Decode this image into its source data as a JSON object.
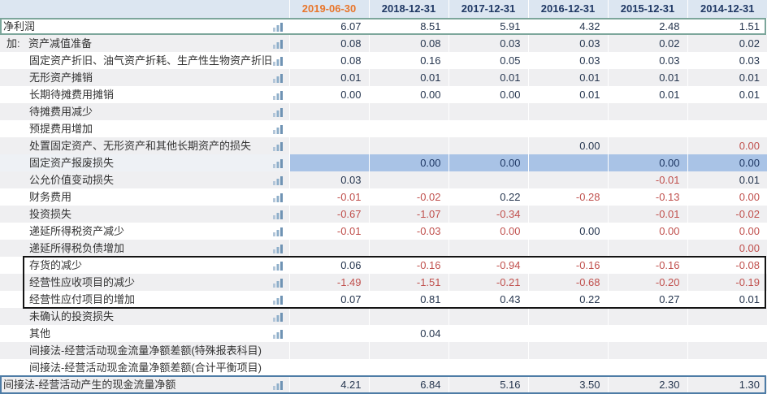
{
  "columns": [
    "2019-06-30",
    "2018-12-31",
    "2017-12-31",
    "2016-12-31",
    "2015-12-31",
    "2014-12-31"
  ],
  "current_period_column": "2019-06-30",
  "rows": [
    {
      "label": "净利润",
      "prefix": "",
      "indent": 0,
      "icon": true,
      "highlight": false,
      "box": "net-profit",
      "cells": [
        [
          "6.07",
          "d"
        ],
        [
          "8.51",
          "d"
        ],
        [
          "5.91",
          "d"
        ],
        [
          "4.32",
          "d"
        ],
        [
          "2.48",
          "d"
        ],
        [
          "1.51",
          "d"
        ]
      ]
    },
    {
      "label": "资产减值准备",
      "prefix": "加:",
      "indent": 0,
      "icon": true,
      "highlight": false,
      "cells": [
        [
          "0.08",
          "d"
        ],
        [
          "0.08",
          "d"
        ],
        [
          "0.03",
          "d"
        ],
        [
          "0.03",
          "d"
        ],
        [
          "0.02",
          "d"
        ],
        [
          "0.02",
          "d"
        ]
      ]
    },
    {
      "label": "固定资产折旧、油气资产折耗、生产性生物资产折旧",
      "prefix": "",
      "indent": 1,
      "icon": true,
      "highlight": false,
      "cells": [
        [
          "0.08",
          "d"
        ],
        [
          "0.16",
          "d"
        ],
        [
          "0.05",
          "d"
        ],
        [
          "0.03",
          "d"
        ],
        [
          "0.03",
          "d"
        ],
        [
          "0.03",
          "d"
        ]
      ]
    },
    {
      "label": "无形资产摊销",
      "prefix": "",
      "indent": 1,
      "icon": true,
      "highlight": false,
      "cells": [
        [
          "0.01",
          "d"
        ],
        [
          "0.01",
          "d"
        ],
        [
          "0.01",
          "d"
        ],
        [
          "0.01",
          "d"
        ],
        [
          "0.01",
          "d"
        ],
        [
          "0.01",
          "d"
        ]
      ]
    },
    {
      "label": "长期待摊费用摊销",
      "prefix": "",
      "indent": 1,
      "icon": true,
      "highlight": false,
      "cells": [
        [
          "0.00",
          "d"
        ],
        [
          "0.00",
          "d"
        ],
        [
          "0.00",
          "d"
        ],
        [
          "0.01",
          "d"
        ],
        [
          "0.01",
          "d"
        ],
        [
          "0.01",
          "d"
        ]
      ]
    },
    {
      "label": "待摊费用减少",
      "prefix": "",
      "indent": 1,
      "icon": true,
      "highlight": false,
      "cells": [
        [
          "",
          ""
        ],
        [
          "",
          ""
        ],
        [
          "",
          ""
        ],
        [
          "",
          ""
        ],
        [
          "",
          ""
        ],
        [
          "",
          ""
        ]
      ]
    },
    {
      "label": "预提费用增加",
      "prefix": "",
      "indent": 1,
      "icon": true,
      "highlight": false,
      "cells": [
        [
          "",
          ""
        ],
        [
          "",
          ""
        ],
        [
          "",
          ""
        ],
        [
          "",
          ""
        ],
        [
          "",
          ""
        ],
        [
          "",
          ""
        ]
      ]
    },
    {
      "label": "处置固定资产、无形资产和其他长期资产的损失",
      "prefix": "",
      "indent": 1,
      "icon": true,
      "highlight": false,
      "cells": [
        [
          "",
          ""
        ],
        [
          "",
          ""
        ],
        [
          "",
          ""
        ],
        [
          "0.00",
          "d"
        ],
        [
          "",
          ""
        ],
        [
          "0.00",
          "r"
        ]
      ]
    },
    {
      "label": "固定资产报废损失",
      "prefix": "",
      "indent": 1,
      "icon": true,
      "highlight": true,
      "cells": [
        [
          "",
          ""
        ],
        [
          "0.00",
          "d"
        ],
        [
          "0.00",
          "d"
        ],
        [
          "",
          ""
        ],
        [
          "0.00",
          "d"
        ],
        [
          "0.00",
          "d"
        ]
      ]
    },
    {
      "label": "公允价值变动损失",
      "prefix": "",
      "indent": 1,
      "icon": true,
      "highlight": false,
      "cells": [
        [
          "0.03",
          "d"
        ],
        [
          "",
          ""
        ],
        [
          "",
          ""
        ],
        [
          "",
          ""
        ],
        [
          "-0.01",
          "r"
        ],
        [
          "0.01",
          "d"
        ]
      ]
    },
    {
      "label": "财务费用",
      "prefix": "",
      "indent": 1,
      "icon": true,
      "highlight": false,
      "cells": [
        [
          "-0.01",
          "r"
        ],
        [
          "-0.02",
          "r"
        ],
        [
          "0.22",
          "d"
        ],
        [
          "-0.28",
          "r"
        ],
        [
          "-0.13",
          "r"
        ],
        [
          "0.00",
          "r"
        ]
      ]
    },
    {
      "label": "投资损失",
      "prefix": "",
      "indent": 1,
      "icon": true,
      "highlight": false,
      "cells": [
        [
          "-0.67",
          "r"
        ],
        [
          "-1.07",
          "r"
        ],
        [
          "-0.34",
          "r"
        ],
        [
          "",
          ""
        ],
        [
          "-0.01",
          "r"
        ],
        [
          "-0.02",
          "r"
        ]
      ]
    },
    {
      "label": "递延所得税资产减少",
      "prefix": "",
      "indent": 1,
      "icon": true,
      "highlight": false,
      "cells": [
        [
          "-0.01",
          "r"
        ],
        [
          "-0.03",
          "r"
        ],
        [
          "0.00",
          "r"
        ],
        [
          "0.00",
          "d"
        ],
        [
          "0.00",
          "r"
        ],
        [
          "0.00",
          "r"
        ]
      ]
    },
    {
      "label": "递延所得税负债增加",
      "prefix": "",
      "indent": 1,
      "icon": true,
      "highlight": false,
      "cells": [
        [
          "",
          ""
        ],
        [
          "",
          ""
        ],
        [
          "",
          ""
        ],
        [
          "",
          ""
        ],
        [
          "",
          ""
        ],
        [
          "0.00",
          "r"
        ]
      ]
    },
    {
      "label": "存货的减少",
      "prefix": "",
      "indent": 1,
      "icon": true,
      "highlight": false,
      "box": "working-capital-start",
      "cells": [
        [
          "0.06",
          "d"
        ],
        [
          "-0.16",
          "r"
        ],
        [
          "-0.94",
          "r"
        ],
        [
          "-0.16",
          "r"
        ],
        [
          "-0.16",
          "r"
        ],
        [
          "-0.08",
          "r"
        ]
      ]
    },
    {
      "label": "经营性应收项目的减少",
      "prefix": "",
      "indent": 1,
      "icon": true,
      "highlight": false,
      "cells": [
        [
          "-1.49",
          "r"
        ],
        [
          "-1.51",
          "r"
        ],
        [
          "-0.21",
          "r"
        ],
        [
          "-0.68",
          "r"
        ],
        [
          "-0.20",
          "r"
        ],
        [
          "-0.19",
          "r"
        ]
      ]
    },
    {
      "label": "经营性应付项目的增加",
      "prefix": "",
      "indent": 1,
      "icon": true,
      "highlight": false,
      "box": "working-capital-end",
      "cells": [
        [
          "0.07",
          "d"
        ],
        [
          "0.81",
          "d"
        ],
        [
          "0.43",
          "d"
        ],
        [
          "0.22",
          "d"
        ],
        [
          "0.27",
          "d"
        ],
        [
          "0.01",
          "d"
        ]
      ]
    },
    {
      "label": "未确认的投资损失",
      "prefix": "",
      "indent": 1,
      "icon": true,
      "highlight": false,
      "cells": [
        [
          "",
          ""
        ],
        [
          "",
          ""
        ],
        [
          "",
          ""
        ],
        [
          "",
          ""
        ],
        [
          "",
          ""
        ],
        [
          "",
          ""
        ]
      ]
    },
    {
      "label": "其他",
      "prefix": "",
      "indent": 1,
      "icon": true,
      "highlight": false,
      "cells": [
        [
          "",
          ""
        ],
        [
          "0.04",
          "d"
        ],
        [
          "",
          ""
        ],
        [
          "",
          ""
        ],
        [
          "",
          ""
        ],
        [
          "",
          ""
        ]
      ]
    },
    {
      "label": "间接法-经营活动现金流量净额差额(特殊报表科目)",
      "prefix": "",
      "indent": 1,
      "icon": false,
      "highlight": false,
      "cells": [
        [
          "",
          ""
        ],
        [
          "",
          ""
        ],
        [
          "",
          ""
        ],
        [
          "",
          ""
        ],
        [
          "",
          ""
        ],
        [
          "",
          ""
        ]
      ]
    },
    {
      "label": "间接法-经营活动现金流量净额差额(合计平衡项目)",
      "prefix": "",
      "indent": 1,
      "icon": false,
      "highlight": false,
      "cells": [
        [
          "",
          ""
        ],
        [
          "",
          ""
        ],
        [
          "",
          ""
        ],
        [
          "",
          ""
        ],
        [
          "",
          ""
        ],
        [
          "",
          ""
        ]
      ]
    },
    {
      "label": "间接法-经营活动产生的现金流量净额",
      "prefix": "",
      "indent": 0,
      "icon": true,
      "highlight": false,
      "box": "net-cashflow",
      "cells": [
        [
          "4.21",
          "d"
        ],
        [
          "6.84",
          "d"
        ],
        [
          "5.16",
          "d"
        ],
        [
          "3.50",
          "d"
        ],
        [
          "2.30",
          "d"
        ],
        [
          "1.30",
          "d"
        ]
      ]
    }
  ],
  "icons": {
    "row_trend_icon": "bar-chart-icon"
  },
  "colors": {
    "header_bg": "#dce6f1",
    "header_text": "#1f3864",
    "current_period_text": "#e8762c",
    "zebra_row_bg": "#efeff1",
    "highlight_row_bg": "#a9c3e6",
    "value_text": "#26364f",
    "negative_value_text": "#c0504d",
    "label_text": "#333333",
    "net_profit_box_border": "#7ca69b",
    "working_capital_box_border": "#141414",
    "net_cashflow_box_border": "#4e7ca6",
    "icon_bar_color": "#8fafca"
  }
}
